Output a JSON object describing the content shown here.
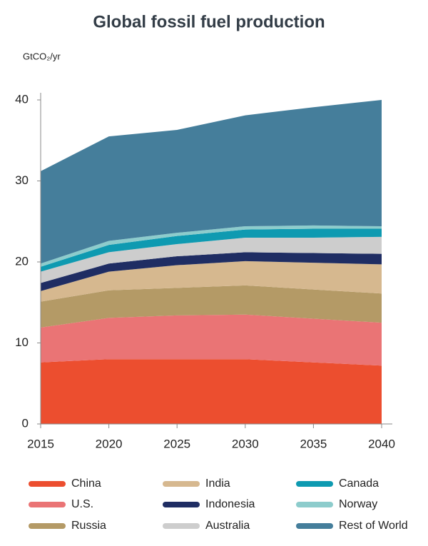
{
  "chart_data": {
    "type": "stacked-area",
    "title": "Global fossil fuel production",
    "y_label": "GtCO₂/yr",
    "x": [
      2015,
      2020,
      2025,
      2030,
      2035,
      2040
    ],
    "xlim": [
      2015,
      2040
    ],
    "xticks": [
      2015,
      2020,
      2025,
      2030,
      2035,
      2040
    ],
    "ylim": [
      0,
      40
    ],
    "yticks": [
      0,
      10,
      20,
      30,
      40
    ],
    "grid": false,
    "legend": "bottom",
    "series": [
      {
        "name": "China",
        "color": "#ec4e2f",
        "values": [
          7.6,
          8.0,
          8.0,
          8.0,
          7.6,
          7.2
        ]
      },
      {
        "name": "U.S.",
        "color": "#ea7475",
        "values": [
          4.3,
          5.1,
          5.4,
          5.5,
          5.4,
          5.3
        ]
      },
      {
        "name": "Russia",
        "color": "#b49a66",
        "values": [
          3.2,
          3.4,
          3.4,
          3.6,
          3.6,
          3.6
        ]
      },
      {
        "name": "India",
        "color": "#d6b88f",
        "values": [
          1.3,
          2.3,
          2.8,
          3.0,
          3.3,
          3.6
        ]
      },
      {
        "name": "Indonesia",
        "color": "#1f2d63",
        "values": [
          1.0,
          1.0,
          1.1,
          1.1,
          1.2,
          1.3
        ]
      },
      {
        "name": "Australia",
        "color": "#cdcdcd",
        "values": [
          1.4,
          1.4,
          1.5,
          1.8,
          1.9,
          2.1
        ]
      },
      {
        "name": "Canada",
        "color": "#0e9ab1",
        "values": [
          0.6,
          0.9,
          1.0,
          1.0,
          1.1,
          1.0
        ]
      },
      {
        "name": "Norway",
        "color": "#8dcccc",
        "values": [
          0.4,
          0.5,
          0.4,
          0.4,
          0.4,
          0.3
        ]
      },
      {
        "name": "Rest of World",
        "color": "#457e9b",
        "values": [
          11.4,
          12.9,
          12.7,
          13.7,
          14.6,
          15.6
        ]
      }
    ]
  }
}
